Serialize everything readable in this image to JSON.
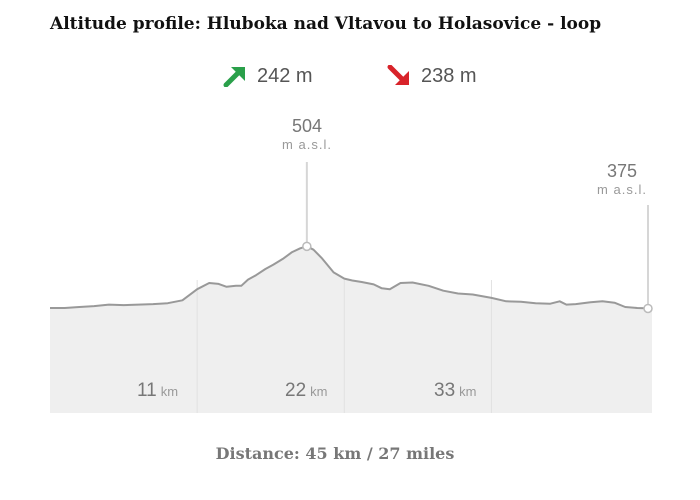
{
  "title": "Altitude profile: Hluboka nad Vltavou to Holasovice - loop",
  "ascent": {
    "value": "242 m",
    "icon": "arrow-up-right-icon",
    "color": "#2aa04a"
  },
  "descent": {
    "value": "238 m",
    "icon": "arrow-down-right-icon",
    "color": "#d8232a"
  },
  "distance_text": "Distance: 45 km / 27 miles",
  "chart_data": {
    "type": "area",
    "x_unit": "km",
    "y_unit": "m a.s.l.",
    "xlim": [
      0,
      45
    ],
    "ylim": [
      340,
      520
    ],
    "grid": true,
    "x_ticks": [
      {
        "value": 11,
        "label": "11",
        "unit": "km"
      },
      {
        "value": 22,
        "label": "22",
        "unit": "km"
      },
      {
        "value": 33,
        "label": "33",
        "unit": "km"
      }
    ],
    "annotations": [
      {
        "x": 19.2,
        "y": 504,
        "label": "504",
        "unit": "m a.s.l."
      },
      {
        "x": 45,
        "y": 375,
        "label": "375",
        "unit": "m a.s.l."
      }
    ],
    "fill_color": "#efefef",
    "line_color": "#999999",
    "x": [
      0,
      1.1,
      2.2,
      3.3,
      4.4,
      5.5,
      6.6,
      7.7,
      8.8,
      9.9,
      11,
      11.9,
      12.6,
      13.2,
      13.9,
      14.3,
      14.8,
      15.4,
      16.1,
      16.7,
      17.4,
      18.1,
      18.7,
      19.2,
      19.7,
      20.3,
      21.2,
      22,
      22.6,
      23.3,
      24.2,
      24.8,
      25.4,
      26.2,
      27.1,
      28.3,
      29.4,
      30.5,
      31.6,
      33,
      34.1,
      35.2,
      36.3,
      37.4,
      38.1,
      38.6,
      39.3,
      40.4,
      41.3,
      42.2,
      43,
      43.9,
      45
    ],
    "y": [
      376,
      376,
      378,
      380,
      383,
      382,
      383,
      384,
      386,
      392,
      415,
      428,
      426,
      420,
      422,
      422,
      435,
      444,
      457,
      466,
      478,
      492,
      500,
      504,
      497,
      480,
      450,
      437,
      433,
      430,
      425,
      417,
      415,
      428,
      429,
      422,
      412,
      406,
      404,
      397,
      390,
      389,
      386,
      385,
      390,
      383,
      384,
      388,
      390,
      387,
      378,
      376,
      375
    ]
  }
}
